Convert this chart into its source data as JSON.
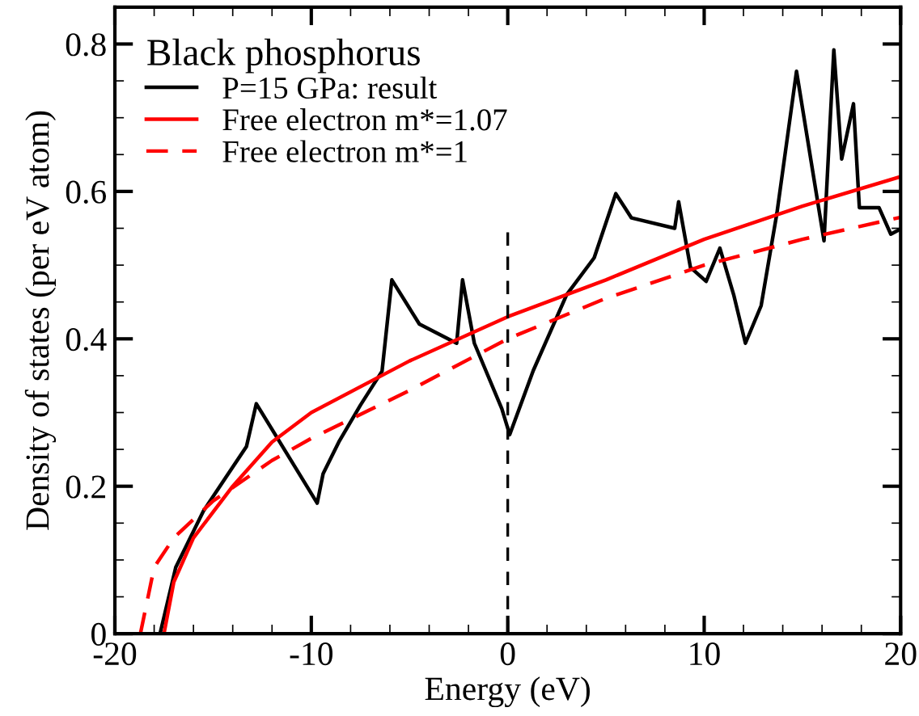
{
  "chart_data": {
    "type": "line",
    "xlabel": "Energy (eV)",
    "ylabel": "Density of states (per eV atom)",
    "legend_title": "Black phosphorus",
    "legend": "top left",
    "grid": false,
    "xlim": [
      -20,
      20
    ],
    "xticks": [
      -20,
      -10,
      0,
      10,
      20
    ],
    "ylim": [
      0,
      0.85
    ],
    "yticks": [
      0,
      0.2,
      0.4,
      0.6,
      0.8
    ],
    "series": [
      {
        "name": "P=15 GPa: result",
        "color": "#000000",
        "line_style": "solid",
        "x": [
          -17.7,
          -16.9,
          -15.5,
          -14.4,
          -13.3,
          -12.8,
          -9.7,
          -9.4,
          -8.6,
          -7.5,
          -6.4,
          -5.9,
          -4.5,
          -2.6,
          -2.3,
          -1.7,
          -0.3,
          0.1,
          1.3,
          3.0,
          4.4,
          5.5,
          6.3,
          8.5,
          8.7,
          9.3,
          10.1,
          10.8,
          11.5,
          12.1,
          12.9,
          13.7,
          14.7,
          15.6,
          16.1,
          16.6,
          17.0,
          17.6,
          17.9,
          18.9,
          19.5,
          20
        ],
        "values": [
          0,
          0.09,
          0.166,
          0.21,
          0.254,
          0.312,
          0.177,
          0.217,
          0.26,
          0.31,
          0.356,
          0.48,
          0.42,
          0.394,
          0.48,
          0.394,
          0.305,
          0.27,
          0.357,
          0.46,
          0.51,
          0.597,
          0.564,
          0.55,
          0.586,
          0.497,
          0.478,
          0.523,
          0.46,
          0.394,
          0.445,
          0.57,
          0.763,
          0.615,
          0.533,
          0.792,
          0.644,
          0.719,
          0.578,
          0.578,
          0.542,
          0.549
        ]
      },
      {
        "name": "Free electron m*=1.07",
        "color": "#ff0000",
        "line_style": "solid",
        "x": [
          -17.5,
          -17,
          -16,
          -14,
          -12,
          -10,
          -5,
          0,
          5,
          10,
          15,
          20
        ],
        "values": [
          0,
          0.07,
          0.13,
          0.2,
          0.26,
          0.3,
          0.37,
          0.43,
          0.48,
          0.535,
          0.58,
          0.62
        ]
      },
      {
        "name": "Free electron m*=1",
        "color": "#ff0000",
        "line_style": "dashed",
        "x": [
          -18.7,
          -18,
          -17,
          -15,
          -12,
          -10,
          -5,
          0,
          5,
          10,
          15,
          20
        ],
        "values": [
          0,
          0.09,
          0.13,
          0.18,
          0.235,
          0.265,
          0.33,
          0.4,
          0.455,
          0.5,
          0.535,
          0.565
        ]
      },
      {
        "color": "#000000",
        "line_style": "dashed",
        "x": [
          0,
          0
        ],
        "values": [
          0,
          0.55
        ]
      }
    ]
  }
}
